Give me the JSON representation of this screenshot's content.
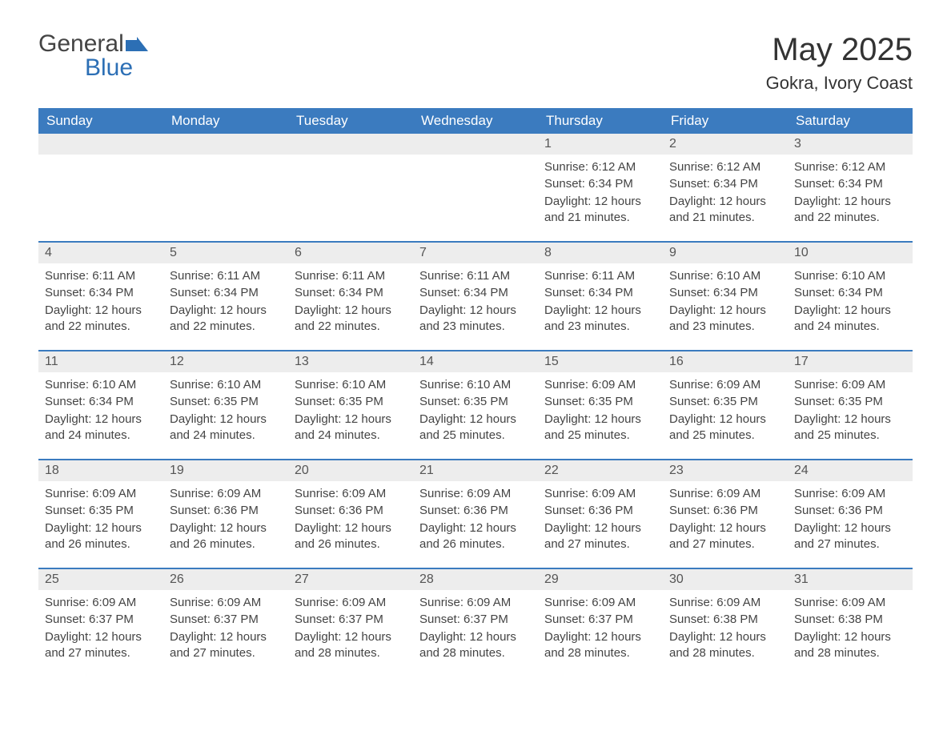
{
  "logo": {
    "word1": "General",
    "word2": "Blue",
    "icon_color": "#2c6fb5"
  },
  "title": "May 2025",
  "location": "Gokra, Ivory Coast",
  "colors": {
    "header_bg": "#3b7bbf",
    "header_text": "#ffffff",
    "daynum_bg": "#ededed",
    "row_border": "#3b7bbf",
    "body_text": "#444444"
  },
  "weekdays": [
    "Sunday",
    "Monday",
    "Tuesday",
    "Wednesday",
    "Thursday",
    "Friday",
    "Saturday"
  ],
  "first_weekday_index": 4,
  "days": [
    {
      "n": 1,
      "sunrise": "6:12 AM",
      "sunset": "6:34 PM",
      "daylight": "12 hours and 21 minutes."
    },
    {
      "n": 2,
      "sunrise": "6:12 AM",
      "sunset": "6:34 PM",
      "daylight": "12 hours and 21 minutes."
    },
    {
      "n": 3,
      "sunrise": "6:12 AM",
      "sunset": "6:34 PM",
      "daylight": "12 hours and 22 minutes."
    },
    {
      "n": 4,
      "sunrise": "6:11 AM",
      "sunset": "6:34 PM",
      "daylight": "12 hours and 22 minutes."
    },
    {
      "n": 5,
      "sunrise": "6:11 AM",
      "sunset": "6:34 PM",
      "daylight": "12 hours and 22 minutes."
    },
    {
      "n": 6,
      "sunrise": "6:11 AM",
      "sunset": "6:34 PM",
      "daylight": "12 hours and 22 minutes."
    },
    {
      "n": 7,
      "sunrise": "6:11 AM",
      "sunset": "6:34 PM",
      "daylight": "12 hours and 23 minutes."
    },
    {
      "n": 8,
      "sunrise": "6:11 AM",
      "sunset": "6:34 PM",
      "daylight": "12 hours and 23 minutes."
    },
    {
      "n": 9,
      "sunrise": "6:10 AM",
      "sunset": "6:34 PM",
      "daylight": "12 hours and 23 minutes."
    },
    {
      "n": 10,
      "sunrise": "6:10 AM",
      "sunset": "6:34 PM",
      "daylight": "12 hours and 24 minutes."
    },
    {
      "n": 11,
      "sunrise": "6:10 AM",
      "sunset": "6:34 PM",
      "daylight": "12 hours and 24 minutes."
    },
    {
      "n": 12,
      "sunrise": "6:10 AM",
      "sunset": "6:35 PM",
      "daylight": "12 hours and 24 minutes."
    },
    {
      "n": 13,
      "sunrise": "6:10 AM",
      "sunset": "6:35 PM",
      "daylight": "12 hours and 24 minutes."
    },
    {
      "n": 14,
      "sunrise": "6:10 AM",
      "sunset": "6:35 PM",
      "daylight": "12 hours and 25 minutes."
    },
    {
      "n": 15,
      "sunrise": "6:09 AM",
      "sunset": "6:35 PM",
      "daylight": "12 hours and 25 minutes."
    },
    {
      "n": 16,
      "sunrise": "6:09 AM",
      "sunset": "6:35 PM",
      "daylight": "12 hours and 25 minutes."
    },
    {
      "n": 17,
      "sunrise": "6:09 AM",
      "sunset": "6:35 PM",
      "daylight": "12 hours and 25 minutes."
    },
    {
      "n": 18,
      "sunrise": "6:09 AM",
      "sunset": "6:35 PM",
      "daylight": "12 hours and 26 minutes."
    },
    {
      "n": 19,
      "sunrise": "6:09 AM",
      "sunset": "6:36 PM",
      "daylight": "12 hours and 26 minutes."
    },
    {
      "n": 20,
      "sunrise": "6:09 AM",
      "sunset": "6:36 PM",
      "daylight": "12 hours and 26 minutes."
    },
    {
      "n": 21,
      "sunrise": "6:09 AM",
      "sunset": "6:36 PM",
      "daylight": "12 hours and 26 minutes."
    },
    {
      "n": 22,
      "sunrise": "6:09 AM",
      "sunset": "6:36 PM",
      "daylight": "12 hours and 27 minutes."
    },
    {
      "n": 23,
      "sunrise": "6:09 AM",
      "sunset": "6:36 PM",
      "daylight": "12 hours and 27 minutes."
    },
    {
      "n": 24,
      "sunrise": "6:09 AM",
      "sunset": "6:36 PM",
      "daylight": "12 hours and 27 minutes."
    },
    {
      "n": 25,
      "sunrise": "6:09 AM",
      "sunset": "6:37 PM",
      "daylight": "12 hours and 27 minutes."
    },
    {
      "n": 26,
      "sunrise": "6:09 AM",
      "sunset": "6:37 PM",
      "daylight": "12 hours and 27 minutes."
    },
    {
      "n": 27,
      "sunrise": "6:09 AM",
      "sunset": "6:37 PM",
      "daylight": "12 hours and 28 minutes."
    },
    {
      "n": 28,
      "sunrise": "6:09 AM",
      "sunset": "6:37 PM",
      "daylight": "12 hours and 28 minutes."
    },
    {
      "n": 29,
      "sunrise": "6:09 AM",
      "sunset": "6:37 PM",
      "daylight": "12 hours and 28 minutes."
    },
    {
      "n": 30,
      "sunrise": "6:09 AM",
      "sunset": "6:38 PM",
      "daylight": "12 hours and 28 minutes."
    },
    {
      "n": 31,
      "sunrise": "6:09 AM",
      "sunset": "6:38 PM",
      "daylight": "12 hours and 28 minutes."
    }
  ],
  "labels": {
    "sunrise": "Sunrise:",
    "sunset": "Sunset:",
    "daylight": "Daylight:"
  }
}
